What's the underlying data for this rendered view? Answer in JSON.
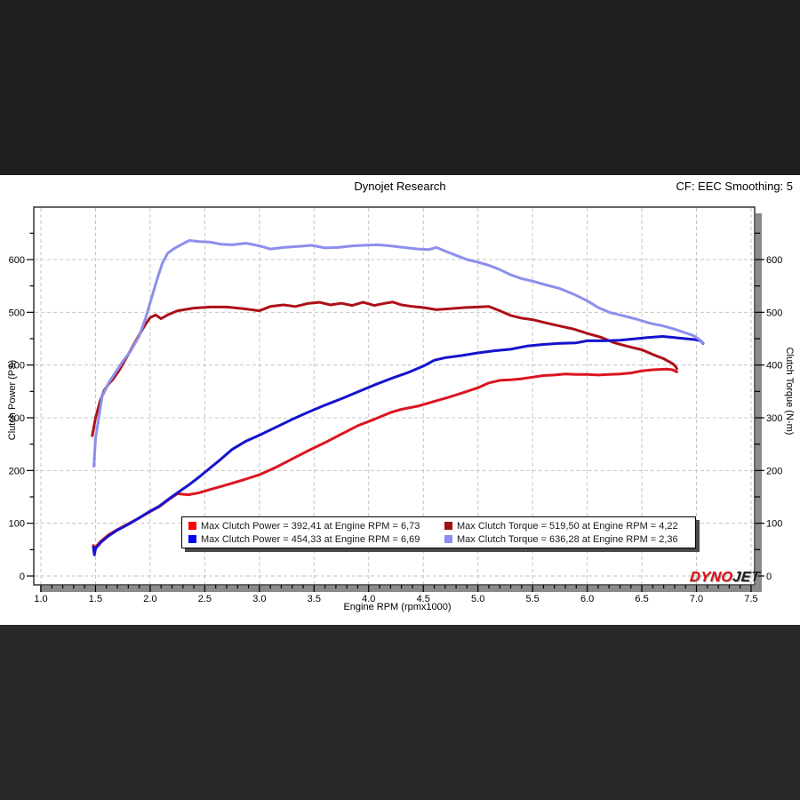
{
  "header": {
    "title": "Dynojet Research",
    "smoothing": "CF: EEC Smoothing: 5"
  },
  "logo": {
    "part1": "DYNO",
    "part2": "JET"
  },
  "colors": {
    "top_bar": "#1f1f1f",
    "bottom_bar": "#282828",
    "frame": "#333333",
    "frame_shadow": "#8a8a8a",
    "grid": "#c4c4c4",
    "tick": "#000000"
  },
  "chart_data": {
    "type": "line",
    "title": "Dynojet Research",
    "xlabel": "Engine RPM (rpmx1000)",
    "ylabel_left": "Clutch Power (PS)",
    "ylabel_right": "Clutch Torque (N-m)",
    "xlim": [
      1.0,
      7.5
    ],
    "x_major_step": 0.5,
    "x_minor_step": 0.1,
    "ylim": [
      -17,
      700
    ],
    "y_label_max": 600,
    "y_major_step": 100,
    "y_minor_step": 50,
    "grid": "dashed",
    "legend_position": "bottom-center",
    "legend": [
      {
        "color": "#fb0207",
        "label": "Max Clutch Power = 392,41 at Engine RPM = 6,73"
      },
      {
        "color": "#a00d12",
        "label": "Max Clutch Torque = 519,50 at Engine RPM = 4,22"
      },
      {
        "color": "#0004f8",
        "label": "Max Clutch Power = 454,33 at Engine RPM = 6,69"
      },
      {
        "color": "#8b8df0",
        "label": "Max Clutch Torque = 636,28 at Engine RPM = 2,36"
      }
    ],
    "series": [
      {
        "name": "clutch-power-run1-red",
        "color": "#dc1420",
        "width": 3,
        "points": [
          [
            1.48,
            58
          ],
          [
            1.49,
            46
          ],
          [
            1.5,
            55
          ],
          [
            1.55,
            66
          ],
          [
            1.62,
            78
          ],
          [
            1.7,
            88
          ],
          [
            1.8,
            99
          ],
          [
            1.9,
            110
          ],
          [
            2.0,
            122
          ],
          [
            2.08,
            131
          ],
          [
            2.17,
            145
          ],
          [
            2.25,
            156
          ],
          [
            2.35,
            154
          ],
          [
            2.45,
            158
          ],
          [
            2.55,
            164
          ],
          [
            2.7,
            173
          ],
          [
            2.85,
            182
          ],
          [
            3.0,
            192
          ],
          [
            3.15,
            206
          ],
          [
            3.3,
            222
          ],
          [
            3.45,
            238
          ],
          [
            3.6,
            253
          ],
          [
            3.75,
            269
          ],
          [
            3.9,
            285
          ],
          [
            4.05,
            297
          ],
          [
            4.2,
            310
          ],
          [
            4.3,
            316
          ],
          [
            4.45,
            322
          ],
          [
            4.6,
            331
          ],
          [
            4.75,
            340
          ],
          [
            4.9,
            350
          ],
          [
            5.0,
            357
          ],
          [
            5.1,
            366
          ],
          [
            5.2,
            371
          ],
          [
            5.3,
            372
          ],
          [
            5.4,
            374
          ],
          [
            5.5,
            377
          ],
          [
            5.6,
            380
          ],
          [
            5.7,
            381
          ],
          [
            5.8,
            383
          ],
          [
            5.9,
            382
          ],
          [
            6.0,
            382
          ],
          [
            6.1,
            381
          ],
          [
            6.2,
            382
          ],
          [
            6.3,
            383
          ],
          [
            6.4,
            385
          ],
          [
            6.5,
            389
          ],
          [
            6.6,
            391
          ],
          [
            6.73,
            392.4
          ],
          [
            6.78,
            391
          ],
          [
            6.82,
            387
          ]
        ]
      },
      {
        "name": "clutch-torque-run1-darkred",
        "color": "#ac1016",
        "width": 3,
        "points": [
          [
            1.47,
            266
          ],
          [
            1.5,
            300
          ],
          [
            1.54,
            330
          ],
          [
            1.58,
            352
          ],
          [
            1.62,
            364
          ],
          [
            1.66,
            373
          ],
          [
            1.72,
            391
          ],
          [
            1.8,
            420
          ],
          [
            1.88,
            450
          ],
          [
            1.95,
            475
          ],
          [
            2.0,
            490
          ],
          [
            2.05,
            495
          ],
          [
            2.1,
            488
          ],
          [
            2.16,
            495
          ],
          [
            2.25,
            503
          ],
          [
            2.4,
            508
          ],
          [
            2.55,
            510
          ],
          [
            2.7,
            510
          ],
          [
            2.85,
            507
          ],
          [
            3.0,
            503
          ],
          [
            3.1,
            511
          ],
          [
            3.22,
            514
          ],
          [
            3.33,
            511
          ],
          [
            3.45,
            517
          ],
          [
            3.55,
            519
          ],
          [
            3.65,
            514
          ],
          [
            3.75,
            517
          ],
          [
            3.85,
            513
          ],
          [
            3.95,
            519
          ],
          [
            4.05,
            513
          ],
          [
            4.15,
            517
          ],
          [
            4.22,
            519.5
          ],
          [
            4.3,
            514
          ],
          [
            4.4,
            511
          ],
          [
            4.5,
            509
          ],
          [
            4.62,
            505
          ],
          [
            4.75,
            507
          ],
          [
            4.88,
            509
          ],
          [
            5.0,
            510
          ],
          [
            5.1,
            511
          ],
          [
            5.2,
            503
          ],
          [
            5.3,
            494
          ],
          [
            5.4,
            489
          ],
          [
            5.5,
            486
          ],
          [
            5.62,
            480
          ],
          [
            5.75,
            474
          ],
          [
            5.88,
            468
          ],
          [
            6.0,
            460
          ],
          [
            6.12,
            453
          ],
          [
            6.25,
            442
          ],
          [
            6.38,
            435
          ],
          [
            6.5,
            429
          ],
          [
            6.6,
            420
          ],
          [
            6.7,
            412
          ],
          [
            6.78,
            403
          ],
          [
            6.81,
            397
          ],
          [
            6.82,
            393
          ]
        ]
      },
      {
        "name": "clutch-power-run2-blue",
        "color": "#1512cf",
        "width": 3,
        "points": [
          [
            1.48,
            55
          ],
          [
            1.49,
            40
          ],
          [
            1.5,
            52
          ],
          [
            1.55,
            64
          ],
          [
            1.62,
            76
          ],
          [
            1.7,
            87
          ],
          [
            1.8,
            98
          ],
          [
            1.9,
            110
          ],
          [
            2.0,
            123
          ],
          [
            2.08,
            132
          ],
          [
            2.17,
            146
          ],
          [
            2.25,
            158
          ],
          [
            2.35,
            172
          ],
          [
            2.45,
            188
          ],
          [
            2.55,
            205
          ],
          [
            2.65,
            222
          ],
          [
            2.75,
            240
          ],
          [
            2.88,
            256
          ],
          [
            3.0,
            267
          ],
          [
            3.15,
            282
          ],
          [
            3.3,
            297
          ],
          [
            3.45,
            311
          ],
          [
            3.6,
            324
          ],
          [
            3.75,
            336
          ],
          [
            3.9,
            349
          ],
          [
            4.05,
            362
          ],
          [
            4.2,
            374
          ],
          [
            4.35,
            385
          ],
          [
            4.5,
            398
          ],
          [
            4.6,
            409
          ],
          [
            4.7,
            414
          ],
          [
            4.85,
            418
          ],
          [
            5.0,
            423
          ],
          [
            5.15,
            427
          ],
          [
            5.3,
            430
          ],
          [
            5.45,
            436
          ],
          [
            5.6,
            439
          ],
          [
            5.75,
            441
          ],
          [
            5.9,
            442
          ],
          [
            6.0,
            446
          ],
          [
            6.15,
            446
          ],
          [
            6.3,
            447
          ],
          [
            6.45,
            450
          ],
          [
            6.55,
            452
          ],
          [
            6.69,
            454.3
          ],
          [
            6.8,
            452
          ],
          [
            6.9,
            450
          ],
          [
            7.0,
            448
          ],
          [
            7.04,
            446
          ],
          [
            7.06,
            441
          ]
        ]
      },
      {
        "name": "clutch-torque-run2-lightblue",
        "color": "#8c8fec",
        "width": 3,
        "points": [
          [
            1.485,
            208
          ],
          [
            1.5,
            262
          ],
          [
            1.53,
            300
          ],
          [
            1.56,
            340
          ],
          [
            1.62,
            366
          ],
          [
            1.68,
            385
          ],
          [
            1.75,
            407
          ],
          [
            1.82,
            426
          ],
          [
            1.9,
            455
          ],
          [
            1.96,
            490
          ],
          [
            2.01,
            525
          ],
          [
            2.06,
            560
          ],
          [
            2.11,
            592
          ],
          [
            2.16,
            612
          ],
          [
            2.22,
            621
          ],
          [
            2.3,
            630
          ],
          [
            2.36,
            636.3
          ],
          [
            2.45,
            634
          ],
          [
            2.55,
            633
          ],
          [
            2.65,
            629
          ],
          [
            2.75,
            628
          ],
          [
            2.88,
            631
          ],
          [
            3.0,
            626
          ],
          [
            3.1,
            620
          ],
          [
            3.22,
            623
          ],
          [
            3.35,
            625
          ],
          [
            3.48,
            627
          ],
          [
            3.6,
            622
          ],
          [
            3.72,
            623
          ],
          [
            3.85,
            626
          ],
          [
            3.95,
            627
          ],
          [
            4.08,
            628
          ],
          [
            4.2,
            626
          ],
          [
            4.32,
            623
          ],
          [
            4.45,
            620
          ],
          [
            4.55,
            619
          ],
          [
            4.62,
            623
          ],
          [
            4.7,
            616
          ],
          [
            4.8,
            608
          ],
          [
            4.9,
            600
          ],
          [
            5.0,
            595
          ],
          [
            5.1,
            589
          ],
          [
            5.2,
            581
          ],
          [
            5.3,
            571
          ],
          [
            5.4,
            564
          ],
          [
            5.5,
            559
          ],
          [
            5.62,
            552
          ],
          [
            5.75,
            545
          ],
          [
            5.88,
            534
          ],
          [
            6.0,
            522
          ],
          [
            6.1,
            509
          ],
          [
            6.2,
            500
          ],
          [
            6.32,
            494
          ],
          [
            6.45,
            487
          ],
          [
            6.58,
            479
          ],
          [
            6.7,
            474
          ],
          [
            6.8,
            468
          ],
          [
            6.9,
            461
          ],
          [
            6.97,
            456
          ],
          [
            7.03,
            448
          ],
          [
            7.06,
            442
          ]
        ]
      }
    ]
  }
}
